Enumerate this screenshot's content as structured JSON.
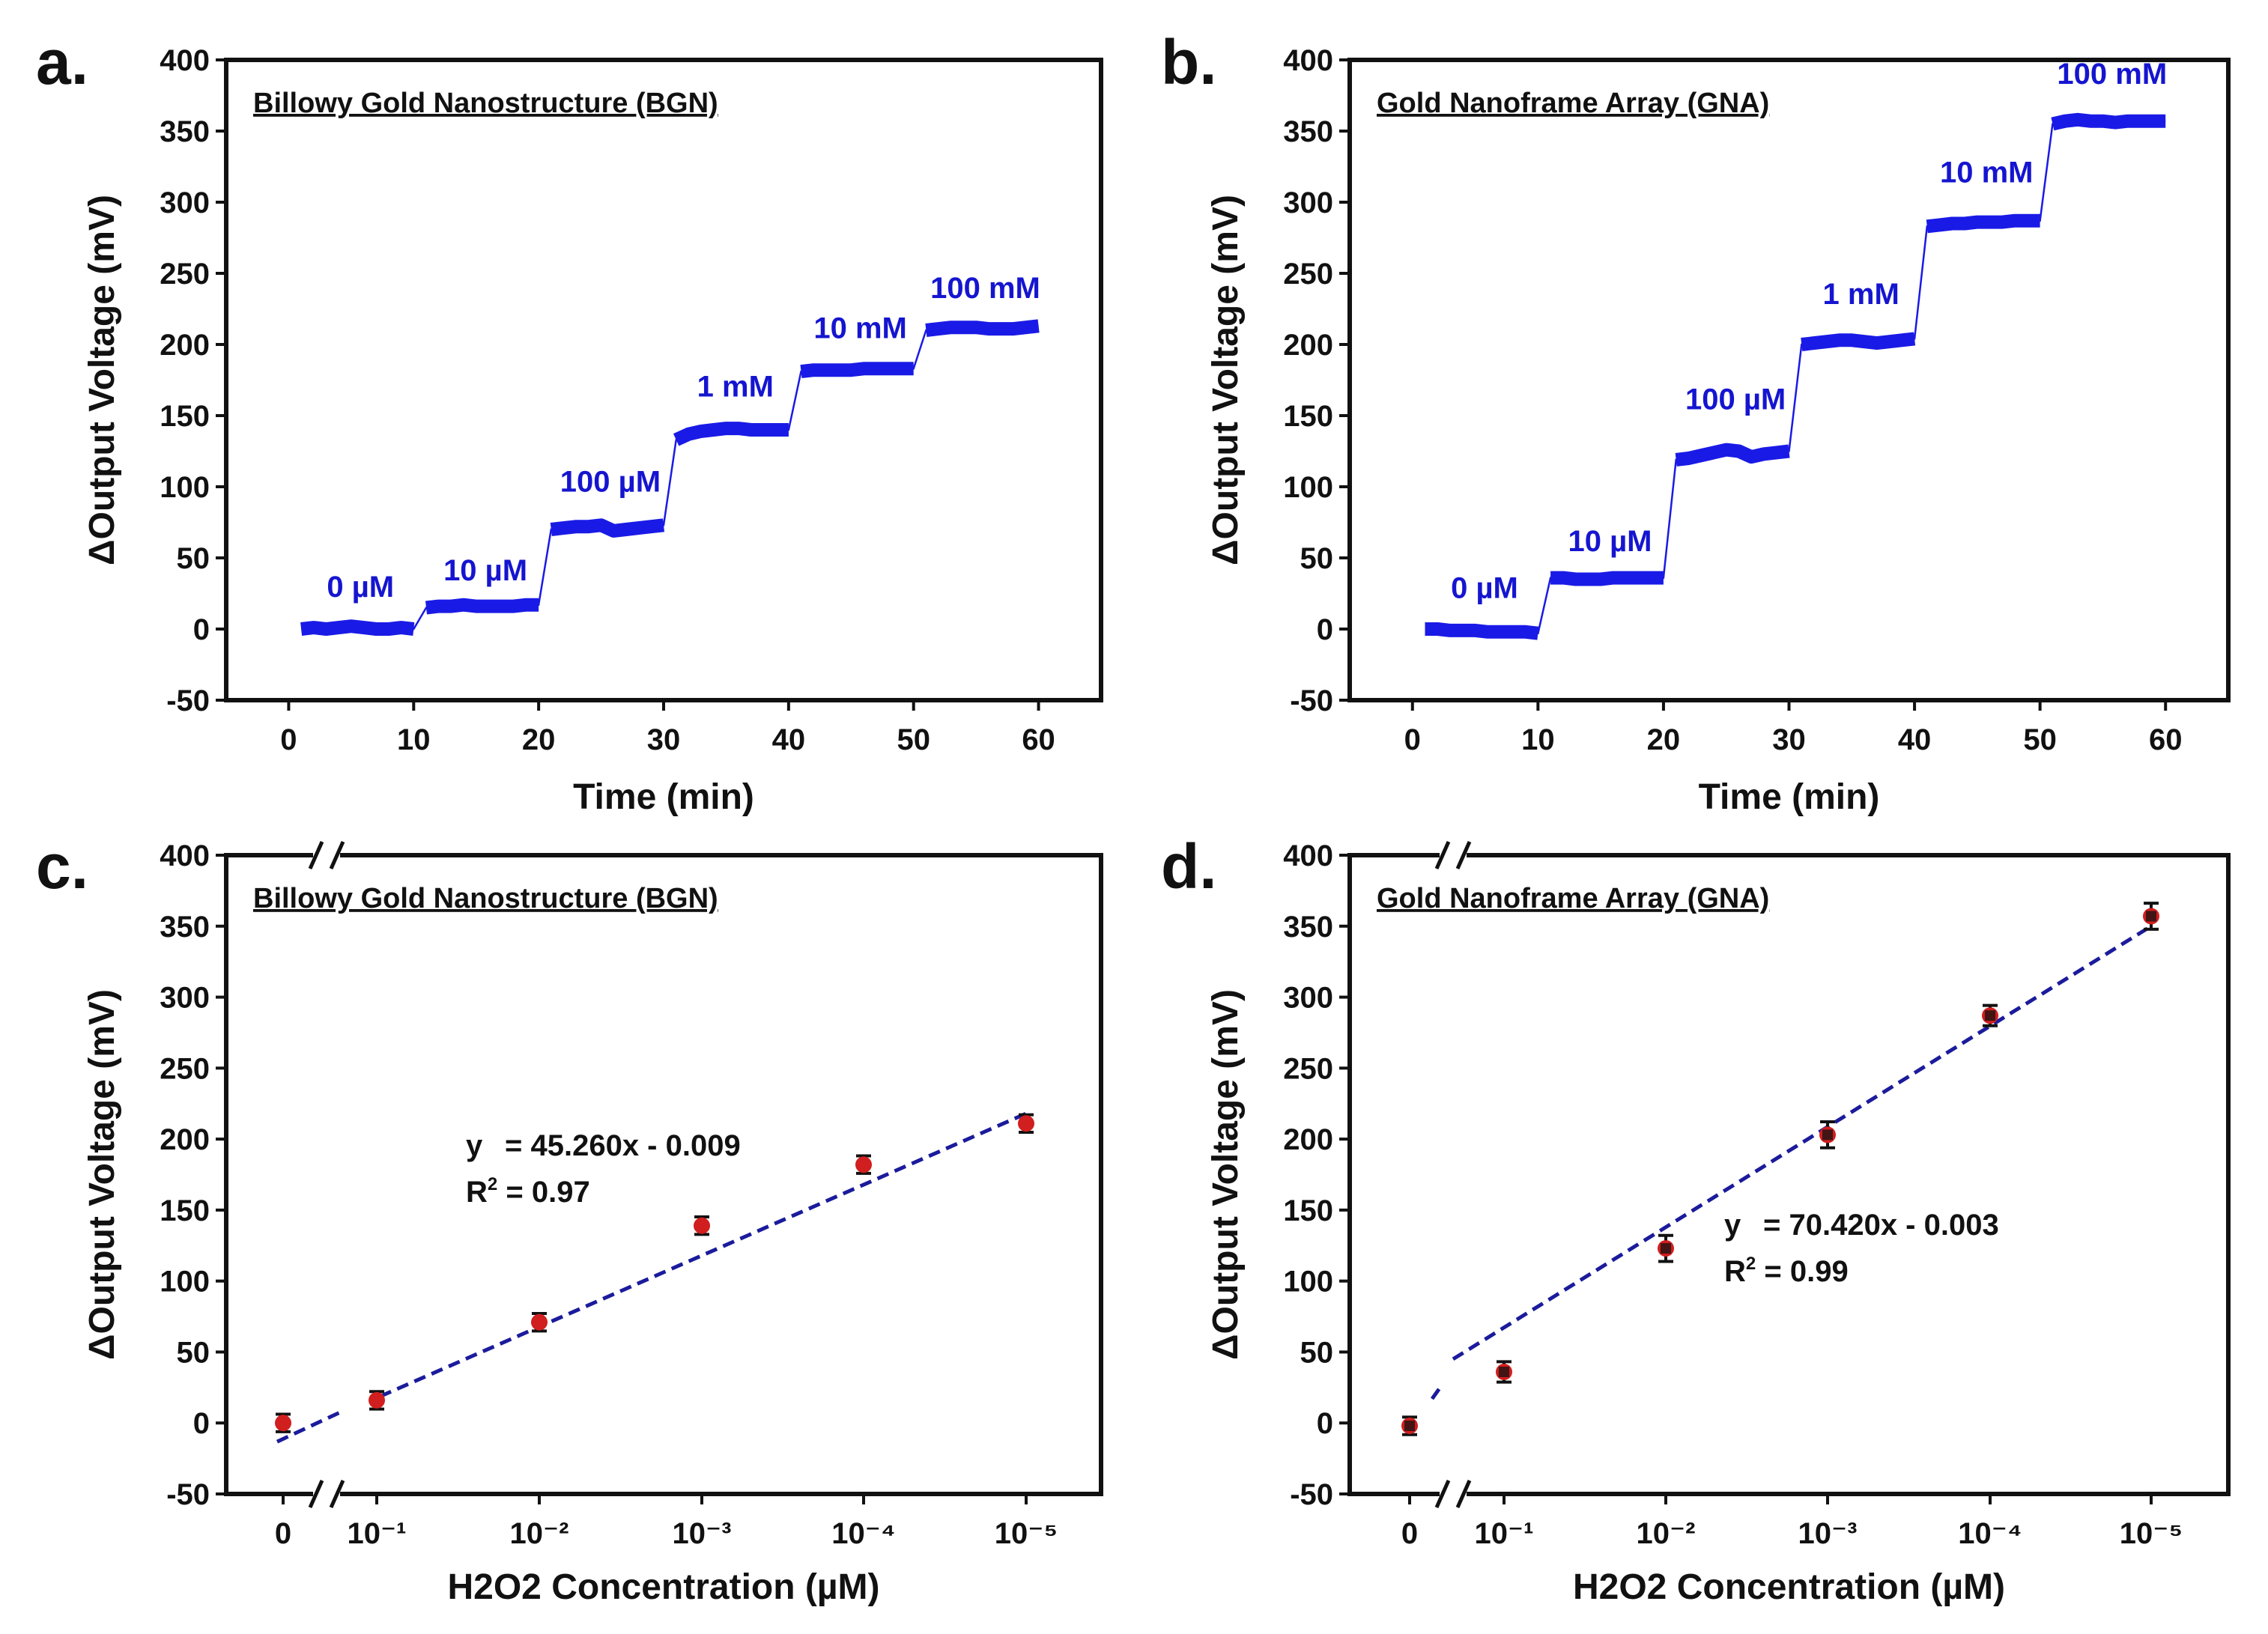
{
  "chart_data": [
    {
      "id": "a",
      "panel_label": "a.",
      "type": "line",
      "title": "Billowy Gold Nanostructure (BGN)",
      "xlabel": "Time (min)",
      "ylabel": "ΔOutput Voltage (mV)",
      "xlim": [
        -5,
        65
      ],
      "ylim": [
        -50,
        400
      ],
      "xticks": [
        "0",
        "10",
        "20",
        "30",
        "40",
        "50",
        "60"
      ],
      "yticks": [
        "-50",
        "0",
        "50",
        "100",
        "150",
        "200",
        "250",
        "300",
        "350",
        "400"
      ],
      "color": "#1a1ae6",
      "steps": [
        {
          "label": "0 µM",
          "t_start": 1,
          "t_end": 10,
          "values": [
            0,
            1,
            0,
            1,
            2,
            1,
            0,
            0,
            1,
            0
          ]
        },
        {
          "label": "10 µM",
          "t_start": 11,
          "t_end": 20,
          "values": [
            15,
            16,
            16,
            17,
            16,
            16,
            16,
            16,
            17,
            17
          ]
        },
        {
          "label": "100 µM",
          "t_start": 21,
          "t_end": 30,
          "values": [
            70,
            71,
            72,
            72,
            73,
            69,
            70,
            71,
            72,
            73
          ]
        },
        {
          "label": "1 mM",
          "t_start": 31,
          "t_end": 40,
          "values": [
            133,
            137,
            139,
            140,
            141,
            141,
            140,
            140,
            140,
            140
          ]
        },
        {
          "label": "10 mM",
          "t_start": 41,
          "t_end": 50,
          "values": [
            181,
            182,
            182,
            182,
            182,
            183,
            183,
            183,
            183,
            183
          ]
        },
        {
          "label": "100 mM",
          "t_start": 51,
          "t_end": 60,
          "values": [
            210,
            211,
            212,
            212,
            212,
            211,
            211,
            211,
            212,
            213
          ]
        }
      ]
    },
    {
      "id": "b",
      "panel_label": "b.",
      "type": "line",
      "title": "Gold Nanoframe Array (GNA)",
      "xlabel": "Time (min)",
      "ylabel": "ΔOutput Voltage (mV)",
      "xlim": [
        -5,
        65
      ],
      "ylim": [
        -50,
        400
      ],
      "xticks": [
        "0",
        "10",
        "20",
        "30",
        "40",
        "50",
        "60"
      ],
      "yticks": [
        "-50",
        "0",
        "50",
        "100",
        "150",
        "200",
        "250",
        "300",
        "350",
        "400"
      ],
      "color": "#1a1ae6",
      "steps": [
        {
          "label": "0 µM",
          "t_start": 1,
          "t_end": 10,
          "values": [
            0,
            0,
            -1,
            -1,
            -1,
            -2,
            -2,
            -2,
            -2,
            -3
          ]
        },
        {
          "label": "10 µM",
          "t_start": 11,
          "t_end": 20,
          "values": [
            36,
            36,
            35,
            35,
            35,
            36,
            36,
            36,
            36,
            36
          ]
        },
        {
          "label": "100 µM",
          "t_start": 21,
          "t_end": 30,
          "values": [
            119,
            120,
            122,
            124,
            126,
            125,
            121,
            123,
            124,
            125
          ]
        },
        {
          "label": "1 mM",
          "t_start": 31,
          "t_end": 40,
          "values": [
            200,
            201,
            202,
            203,
            203,
            202,
            201,
            202,
            203,
            204
          ]
        },
        {
          "label": "10 mM",
          "t_start": 41,
          "t_end": 50,
          "values": [
            283,
            284,
            285,
            285,
            286,
            286,
            286,
            287,
            287,
            287
          ]
        },
        {
          "label": "100 mM",
          "t_start": 51,
          "t_end": 60,
          "values": [
            355,
            357,
            358,
            357,
            357,
            356,
            357,
            357,
            357,
            357
          ]
        }
      ]
    },
    {
      "id": "c",
      "panel_label": "c.",
      "type": "scatter",
      "title": "Billowy Gold Nanostructure (BGN)",
      "xlabel": "H2O2 Concentration (µM)",
      "ylabel": "ΔOutput Voltage (mV)",
      "ylim": [
        -50,
        400
      ],
      "yticks": [
        "-50",
        "0",
        "50",
        "100",
        "150",
        "200",
        "250",
        "300",
        "350",
        "400"
      ],
      "categories": [
        "0",
        "10⁻¹",
        "10⁻²",
        "10⁻³",
        "10⁻⁴",
        "10⁻⁵"
      ],
      "values": [
        0,
        16,
        71,
        139,
        182,
        211
      ],
      "errors": [
        3,
        3,
        3,
        3,
        3,
        3
      ],
      "fit": {
        "equation": "= 45.260x - 0.009",
        "r2": "= 0.97",
        "y_at_start": -10,
        "y_at_end": 218,
        "color": "#1b1b9c"
      },
      "marker_color": "#d11e1e"
    },
    {
      "id": "d",
      "panel_label": "d.",
      "type": "scatter",
      "title": "Gold Nanoframe Array (GNA)",
      "xlabel": "H2O2 Concentration (µM)",
      "ylabel": "ΔOutput Voltage (mV)",
      "ylim": [
        -50,
        400
      ],
      "yticks": [
        "-50",
        "0",
        "50",
        "100",
        "150",
        "200",
        "250",
        "300",
        "350",
        "400"
      ],
      "categories": [
        "0",
        "10⁻¹",
        "10⁻²",
        "10⁻³",
        "10⁻⁴",
        "10⁻⁵"
      ],
      "values": [
        -2,
        36,
        123,
        203,
        287,
        357
      ],
      "errors": [
        3,
        4,
        6,
        6,
        4,
        6
      ],
      "fit": {
        "equation": "= 70.420x - 0.003",
        "r2": "= 0.99",
        "y_at_start": 0,
        "y_at_end": 350,
        "color": "#1b1b9c"
      },
      "marker_color": "#d11e1e"
    }
  ]
}
